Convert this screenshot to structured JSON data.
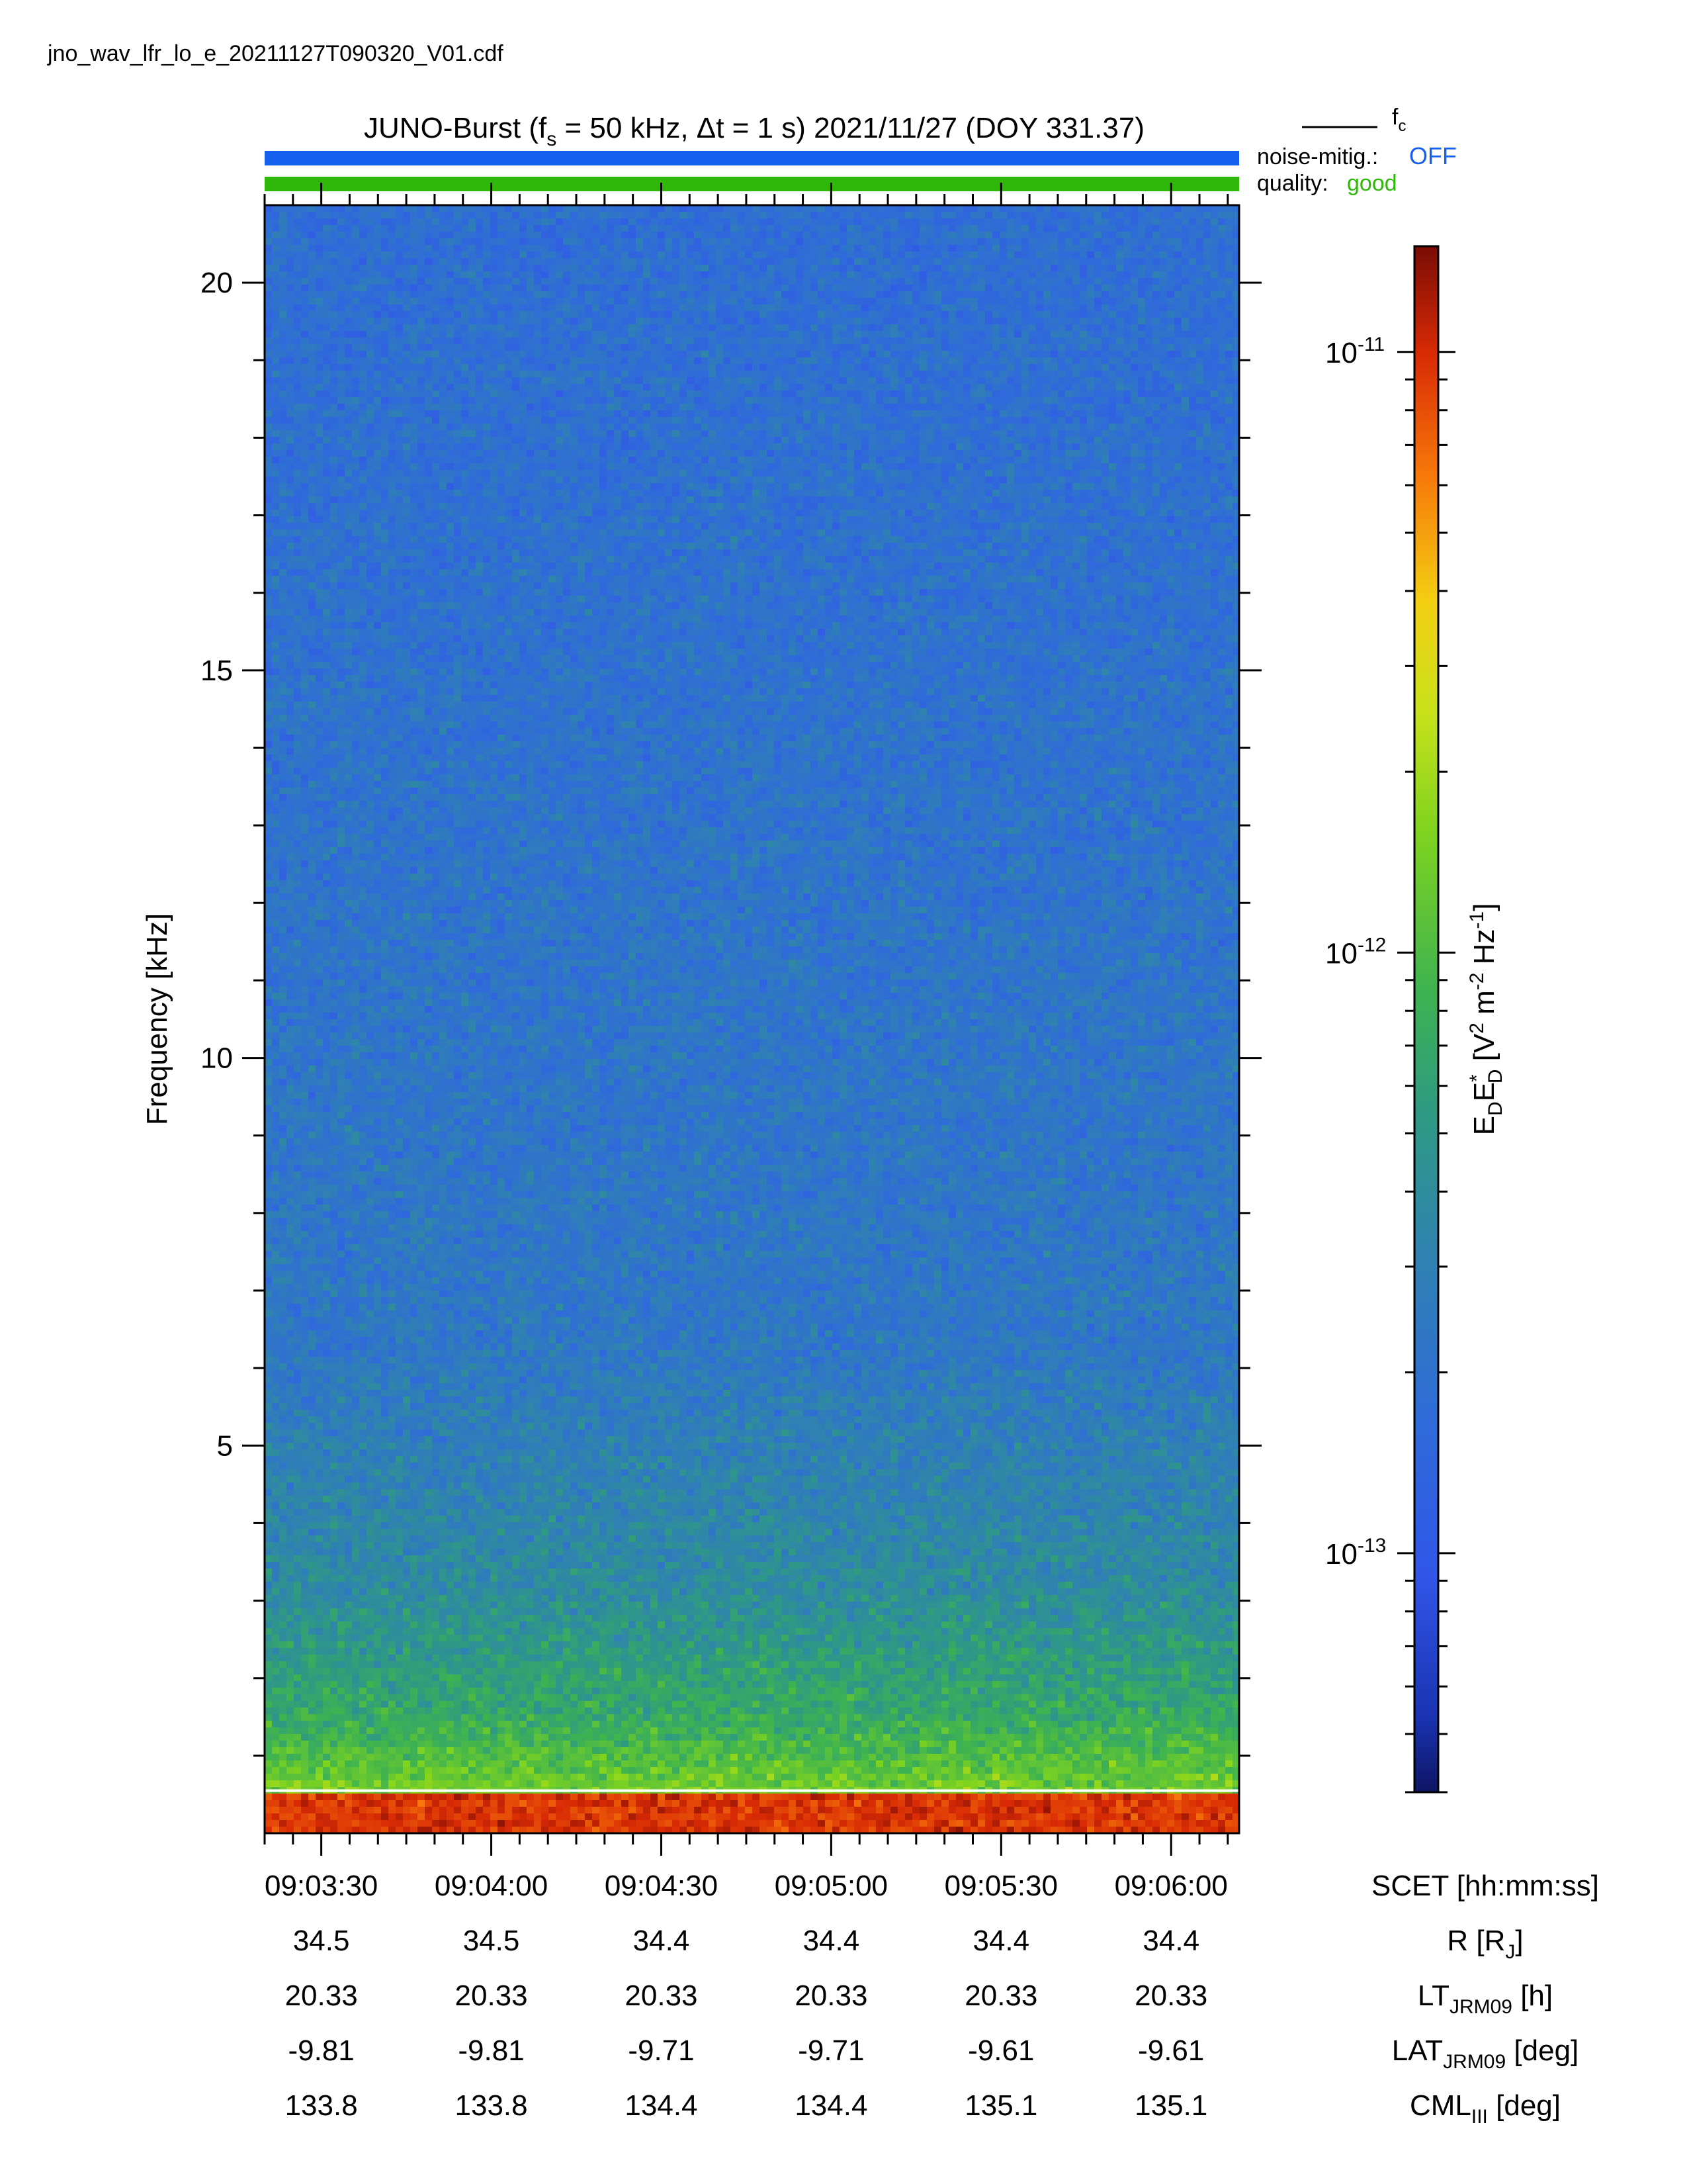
{
  "file_name": "jno_wav_lfr_lo_e_20211127T090320_V01.cdf",
  "header": {
    "title_pre": "JUNO-Burst (f",
    "title_sub": "s",
    "title_mid": " = 50 kHz, Δt = 1 s)  2021/11/27 (DOY 331.37)",
    "fc_label": "f",
    "fc_sub": "c",
    "noise_label": "noise-mitig.:",
    "noise_value": "OFF",
    "quality_label": "quality:",
    "quality_value": "good"
  },
  "colors": {
    "noise_bar": "#1560ee",
    "quality_bar": "#2fb70a",
    "noise_value": "#1560ee",
    "quality_value": "#2fb70a",
    "fc_line": "#ffffff"
  },
  "chart_data": {
    "type": "heatmap",
    "ylabel": "Frequency [kHz]",
    "ylim": [
      0,
      21
    ],
    "yticks": [
      5,
      10,
      15,
      20
    ],
    "y_minor_step": 1,
    "x_range": [
      "09:03:20",
      "09:06:12"
    ],
    "xlabel": "SCET [hh:mm:ss]",
    "x_ticks": [
      "09:03:30",
      "09:04:00",
      "09:04:30",
      "09:05:00",
      "09:05:30",
      "09:06:00"
    ],
    "x_minor_step_s": 5,
    "fc_khz": 0.55,
    "colorbar": {
      "label_main": "E",
      "scale": "log",
      "range": [
        4e-14,
        1.5e-11
      ],
      "ticks": [
        {
          "mant": "10",
          "exp": "-11",
          "value": 1e-11
        },
        {
          "mant": "10",
          "exp": "-12",
          "value": 1e-12
        },
        {
          "mant": "10",
          "exp": "-13",
          "value": 1e-13
        }
      ]
    },
    "ephemeris": [
      {
        "label": "R [R",
        "sub": "J",
        "post": "]",
        "values": [
          "34.5",
          "34.5",
          "34.4",
          "34.4",
          "34.4",
          "34.4"
        ]
      },
      {
        "label": "LT",
        "sub": "JRM09",
        "post": " [h]",
        "values": [
          "20.33",
          "20.33",
          "20.33",
          "20.33",
          "20.33",
          "20.33"
        ]
      },
      {
        "label": "LAT",
        "sub": "JRM09",
        "post": " [deg]",
        "values": [
          "-9.81",
          "-9.81",
          "-9.71",
          "-9.71",
          "-9.61",
          "-9.61"
        ]
      },
      {
        "label": "CML",
        "sub": "III",
        "post": " [deg]",
        "values": [
          "133.8",
          "133.8",
          "134.4",
          "134.4",
          "135.1",
          "135.1"
        ]
      }
    ]
  }
}
